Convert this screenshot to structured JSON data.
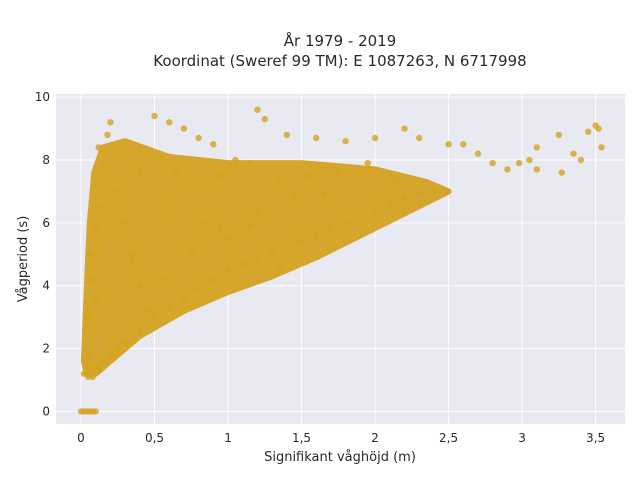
{
  "chart_data": {
    "type": "scatter",
    "title_line1": "År 1979 - 2019",
    "title_line2": "Koordinat (Sweref 99 TM): E 1087263, N 6717998",
    "xlabel": "Signifikant våghöjd (m)",
    "ylabel": "Vågperiod (s)",
    "xlim": [
      -0.17,
      3.7
    ],
    "ylim": [
      -0.4,
      10.1
    ],
    "x_ticks": [
      0,
      0.5,
      1,
      1.5,
      2,
      2.5,
      3,
      3.5
    ],
    "x_tick_labels": [
      "0",
      "0,5",
      "1",
      "1,5",
      "2",
      "2,5",
      "3",
      "3,5"
    ],
    "y_ticks": [
      0,
      2,
      4,
      6,
      8,
      10
    ],
    "y_tick_labels": [
      "0",
      "2",
      "4",
      "6",
      "8",
      "10"
    ],
    "grid": true,
    "marker_color": "#D4A321",
    "background_color": "#E9E9F1",
    "points": [
      [
        0.0,
        0.0
      ],
      [
        0.02,
        0.0
      ],
      [
        0.04,
        0.0
      ],
      [
        0.06,
        0.0
      ],
      [
        0.08,
        0.0
      ],
      [
        0.1,
        0.0
      ],
      [
        0.02,
        1.2
      ],
      [
        0.05,
        1.1
      ],
      [
        0.08,
        1.1
      ],
      [
        0.03,
        1.5
      ],
      [
        0.06,
        1.8
      ],
      [
        0.1,
        1.4
      ],
      [
        0.12,
        1.3
      ],
      [
        0.15,
        1.6
      ],
      [
        0.2,
        1.8
      ],
      [
        0.25,
        2.0
      ],
      [
        0.3,
        2.2
      ],
      [
        0.4,
        2.5
      ],
      [
        0.05,
        3.0
      ],
      [
        0.1,
        3.5
      ],
      [
        0.08,
        4.2
      ],
      [
        0.06,
        5.0
      ],
      [
        0.1,
        5.8
      ],
      [
        0.12,
        6.5
      ],
      [
        0.1,
        7.2
      ],
      [
        0.15,
        7.8
      ],
      [
        0.12,
        8.4
      ],
      [
        0.18,
        8.8
      ],
      [
        0.2,
        9.2
      ],
      [
        0.25,
        7.0
      ],
      [
        0.3,
        6.0
      ],
      [
        0.35,
        5.0
      ],
      [
        0.4,
        4.0
      ],
      [
        0.45,
        3.2
      ],
      [
        0.5,
        3.0
      ],
      [
        0.6,
        3.3
      ],
      [
        0.7,
        3.6
      ],
      [
        0.8,
        3.9
      ],
      [
        0.9,
        4.2
      ],
      [
        1.0,
        4.5
      ],
      [
        1.1,
        4.7
      ],
      [
        1.2,
        4.9
      ],
      [
        1.3,
        5.0
      ],
      [
        1.4,
        5.2
      ],
      [
        1.5,
        5.4
      ],
      [
        1.6,
        5.6
      ],
      [
        1.7,
        5.8
      ],
      [
        1.8,
        6.0
      ],
      [
        1.9,
        6.2
      ],
      [
        2.0,
        6.4
      ],
      [
        2.1,
        6.6
      ],
      [
        2.2,
        6.8
      ],
      [
        2.3,
        6.9
      ],
      [
        2.4,
        7.0
      ],
      [
        0.5,
        9.4
      ],
      [
        0.6,
        9.2
      ],
      [
        0.7,
        9.0
      ],
      [
        0.8,
        8.7
      ],
      [
        0.9,
        8.5
      ],
      [
        1.2,
        9.6
      ],
      [
        1.25,
        9.3
      ],
      [
        1.4,
        8.8
      ],
      [
        1.6,
        8.7
      ],
      [
        1.8,
        8.6
      ],
      [
        2.0,
        8.7
      ],
      [
        2.2,
        9.0
      ],
      [
        2.3,
        8.7
      ],
      [
        2.5,
        8.5
      ],
      [
        2.6,
        8.5
      ],
      [
        2.7,
        8.2
      ],
      [
        2.8,
        7.9
      ],
      [
        2.9,
        7.7
      ],
      [
        2.98,
        7.9
      ],
      [
        3.05,
        8.0
      ],
      [
        3.1,
        8.4
      ],
      [
        3.1,
        7.7
      ],
      [
        3.25,
        8.8
      ],
      [
        3.27,
        7.6
      ],
      [
        3.35,
        8.2
      ],
      [
        3.4,
        8.0
      ],
      [
        3.45,
        8.9
      ],
      [
        3.5,
        9.1
      ],
      [
        3.52,
        9.0
      ],
      [
        3.54,
        8.4
      ],
      [
        0.4,
        7.6
      ],
      [
        0.55,
        8.0
      ],
      [
        0.65,
        7.6
      ],
      [
        0.75,
        7.2
      ],
      [
        0.95,
        7.5
      ],
      [
        1.05,
        8.0
      ],
      [
        1.15,
        7.9
      ],
      [
        1.35,
        7.3
      ],
      [
        1.55,
        7.5
      ],
      [
        1.75,
        7.6
      ],
      [
        1.95,
        7.9
      ],
      [
        2.15,
        7.4
      ],
      [
        0.6,
        6.5
      ],
      [
        0.85,
        6.0
      ],
      [
        1.0,
        5.5
      ],
      [
        1.2,
        6.3
      ],
      [
        1.45,
        6.8
      ],
      [
        1.65,
        6.9
      ],
      [
        0.35,
        4.8
      ],
      [
        0.55,
        4.2
      ],
      [
        0.75,
        5.1
      ],
      [
        0.95,
        5.8
      ],
      [
        1.15,
        5.9
      ],
      [
        1.35,
        4.6
      ]
    ]
  }
}
